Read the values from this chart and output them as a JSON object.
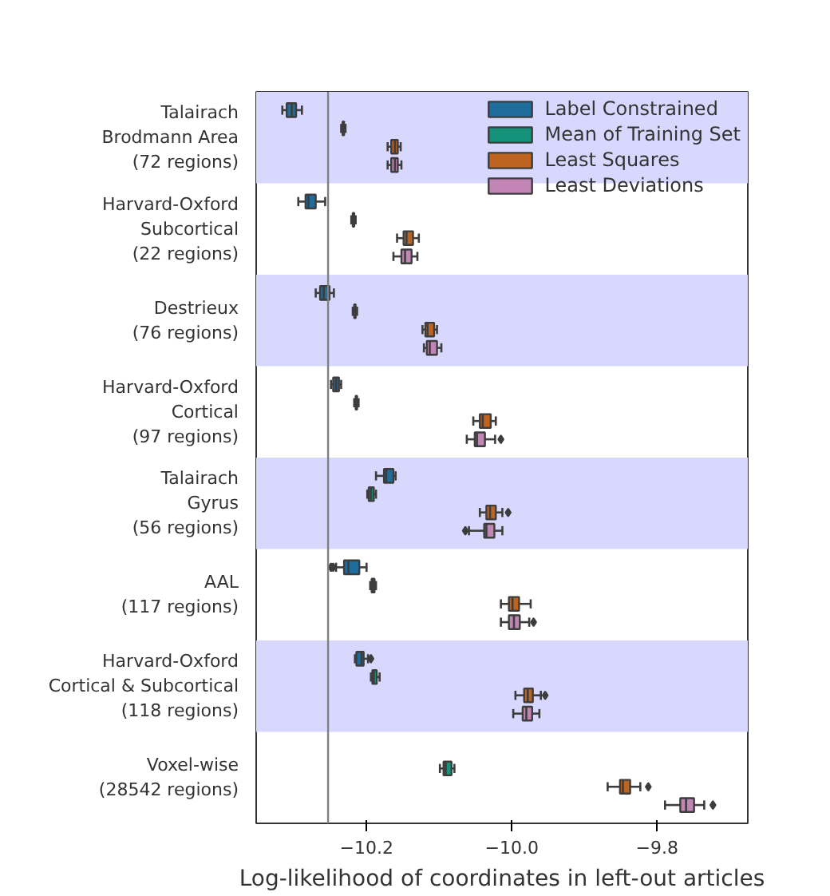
{
  "chart_data": {
    "type": "box",
    "orientation": "horizontal",
    "xlabel": "Log-likelihood of coordinates in left-out articles",
    "categories": [
      "Talairach\nBrodmann Area\n(72 regions)",
      "Harvard-Oxford\nSubcortical\n(22 regions)",
      "Destrieux\n(76 regions)",
      "Harvard-Oxford\nCortical\n(97 regions)",
      "Talairach\nGyrus\n(56 regions)",
      "AAL\n(117 regions)",
      "Harvard-Oxford\nCortical & Subcortical\n(118 regions)",
      "Voxel-wise\n(28542 regions)"
    ],
    "xlim": [
      -10.352,
      -9.675
    ],
    "xticks": [
      {
        "value": -10.2,
        "label": "−10.2"
      },
      {
        "value": -10.0,
        "label": "−10.0"
      },
      {
        "value": -9.8,
        "label": "−9.8"
      }
    ],
    "legend": "top right",
    "grid": false,
    "ref_lines": [
      {
        "axis": "x",
        "value": -10.253,
        "label": null,
        "color": "#808080"
      }
    ],
    "series": [
      {
        "name": "Label Constrained",
        "color": "#1f6d9c",
        "boxes": [
          {
            "low": -10.316,
            "q1": -10.31,
            "median": -10.303,
            "q3": -10.297,
            "high": -10.289
          },
          {
            "low": -10.294,
            "q1": -10.284,
            "median": -10.28,
            "q3": -10.27,
            "high": -10.257
          },
          {
            "low": -10.27,
            "q1": -10.264,
            "median": -10.259,
            "q3": -10.251,
            "high": -10.245
          },
          {
            "low": -10.249,
            "q1": -10.246,
            "median": -10.242,
            "q3": -10.238,
            "high": -10.235
          },
          {
            "low": -10.187,
            "q1": -10.176,
            "median": -10.173,
            "q3": -10.163,
            "high": -10.16
          },
          {
            "low": -10.242,
            "q1": -10.231,
            "median": -10.225,
            "q3": -10.21,
            "high": -10.2,
            "outliers": [
              -10.249,
              -10.246
            ]
          },
          {
            "low": -10.216,
            "q1": -10.214,
            "median": -10.207,
            "q3": -10.204,
            "high": -10.198,
            "outliers": [
              -10.194
            ]
          },
          null
        ]
      },
      {
        "name": "Mean of Training Set",
        "color": "#15937a",
        "boxes": [
          {
            "low": -10.235,
            "q1": -10.233,
            "median": -10.232,
            "q3": -10.231,
            "high": -10.229
          },
          {
            "low": -10.221,
            "q1": -10.219,
            "median": -10.218,
            "q3": -10.217,
            "high": -10.215
          },
          {
            "low": -10.219,
            "q1": -10.217,
            "median": -10.216,
            "q3": -10.215,
            "high": -10.213
          },
          {
            "low": -10.217,
            "q1": -10.215,
            "median": -10.214,
            "q3": -10.213,
            "high": -10.211
          },
          {
            "low": -10.199,
            "q1": -10.197,
            "median": -10.194,
            "q3": -10.19,
            "high": -10.187
          },
          {
            "low": -10.195,
            "q1": -10.193,
            "median": -10.191,
            "q3": -10.189,
            "high": -10.187
          },
          {
            "low": -10.194,
            "q1": -10.192,
            "median": -10.19,
            "q3": -10.186,
            "high": -10.182
          },
          {
            "low": -10.099,
            "q1": -10.094,
            "median": -10.091,
            "q3": -10.083,
            "high": -10.079
          }
        ]
      },
      {
        "name": "Least Squares",
        "color": "#bf6420",
        "boxes": [
          {
            "low": -10.171,
            "q1": -10.166,
            "median": -10.161,
            "q3": -10.157,
            "high": -10.153
          },
          {
            "low": -10.158,
            "q1": -10.149,
            "median": -10.145,
            "q3": -10.136,
            "high": -10.128
          },
          {
            "low": -10.123,
            "q1": -10.119,
            "median": -10.116,
            "q3": -10.107,
            "high": -10.103
          },
          {
            "low": -10.053,
            "q1": -10.044,
            "median": -10.04,
            "q3": -10.029,
            "high": -10.022
          },
          {
            "low": -10.044,
            "q1": -10.035,
            "median": -10.03,
            "q3": -10.022,
            "high": -10.013,
            "outliers": [
              -10.005
            ]
          },
          {
            "low": -10.015,
            "q1": -10.004,
            "median": -9.999,
            "q3": -9.99,
            "high": -9.974
          },
          {
            "low": -9.995,
            "q1": -9.983,
            "median": -9.978,
            "q3": -9.971,
            "high": -9.96,
            "outliers": [
              -9.954
            ]
          },
          {
            "low": -9.868,
            "q1": -9.851,
            "median": -9.847,
            "q3": -9.837,
            "high": -9.823,
            "outliers": [
              -9.812
            ]
          }
        ]
      },
      {
        "name": "Least Deviations",
        "color": "#c385b5",
        "boxes": [
          {
            "low": -10.171,
            "q1": -10.166,
            "median": -10.161,
            "q3": -10.157,
            "high": -10.152
          },
          {
            "low": -10.163,
            "q1": -10.152,
            "median": -10.147,
            "q3": -10.138,
            "high": -10.13
          },
          {
            "low": -10.121,
            "q1": -10.117,
            "median": -10.113,
            "q3": -10.103,
            "high": -10.097
          },
          {
            "low": -10.062,
            "q1": -10.051,
            "median": -10.048,
            "q3": -10.037,
            "high": -10.023,
            "outliers": [
              -10.015
            ]
          },
          {
            "low": -10.059,
            "q1": -10.038,
            "median": -10.035,
            "q3": -10.024,
            "high": -10.013,
            "outliers": [
              -10.064
            ]
          },
          {
            "low": -10.015,
            "q1": -10.004,
            "median": -9.997,
            "q3": -9.989,
            "high": -9.976,
            "outliers": [
              -9.97
            ]
          },
          {
            "low": -9.998,
            "q1": -9.985,
            "median": -9.98,
            "q3": -9.972,
            "high": -9.962
          },
          {
            "low": -9.789,
            "q1": -9.768,
            "median": -9.76,
            "q3": -9.749,
            "high": -9.735,
            "outliers": [
              -9.723
            ]
          }
        ]
      }
    ]
  }
}
